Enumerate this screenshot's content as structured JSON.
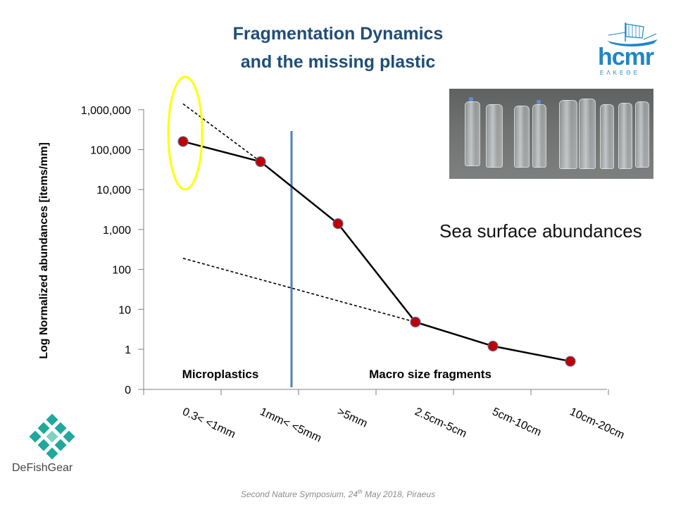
{
  "slide": {
    "title_line1": "Fragmentation Dynamics",
    "title_line2": "and the missing plastic",
    "annotation": "Sea surface abundances",
    "footer_prefix": "Second Nature Symposium, 24",
    "footer_sup": "th",
    "footer_suffix": "  May 2018, Piraeus",
    "brand_left": "DeFishGear",
    "brand_right": "hcmr",
    "brand_right_sub": "ΕΛΚΕΘΕ",
    "colors": {
      "title": "#1f4e79",
      "marker": "#c00000",
      "highlight": "#ffff00",
      "divider": "#4f81bd",
      "hcmr": "#1f86c6",
      "defishgear": "#1fa89b"
    }
  },
  "chart_data": {
    "type": "line",
    "ylabel": "Log Normalized abundances [items/mm]",
    "y_scale": "log",
    "y_ticks": [
      {
        "value": 0,
        "label": "0"
      },
      {
        "value": 1,
        "label": "1"
      },
      {
        "value": 10,
        "label": "10"
      },
      {
        "value": 100,
        "label": "100"
      },
      {
        "value": 1000,
        "label": "1,000"
      },
      {
        "value": 10000,
        "label": "10,000"
      },
      {
        "value": 100000,
        "label": "100,000"
      },
      {
        "value": 1000000,
        "label": "1,000,000"
      }
    ],
    "categories": [
      "0.3<  <1mm",
      "1mm<  <5mm",
      ">5mm",
      "2.5cm-5cm",
      "5cm-10cm",
      "10cm-20cm"
    ],
    "series": [
      {
        "values": [
          160000,
          50000,
          1400,
          4.8,
          1.2,
          0.5
        ]
      }
    ],
    "trend_lines": [
      {
        "style": "dashed",
        "from": {
          "x": "0.3<  <1mm",
          "y": 1400000
        },
        "to": {
          "x": "1mm<  <5mm",
          "y": 50000
        }
      },
      {
        "style": "dashed",
        "from": {
          "x": "0.3<  <1mm",
          "y": 190
        },
        "to": {
          "x": "2.5cm-5cm",
          "y": 4.8
        }
      }
    ],
    "regions": [
      {
        "label": "Microplastics",
        "side": "left"
      },
      {
        "label": "Macro size fragments",
        "side": "right"
      }
    ],
    "highlight": {
      "shape": "ellipse",
      "category": "0.3<  <1mm"
    },
    "divider_between": [
      "1mm<  <5mm",
      ">5mm"
    ]
  }
}
